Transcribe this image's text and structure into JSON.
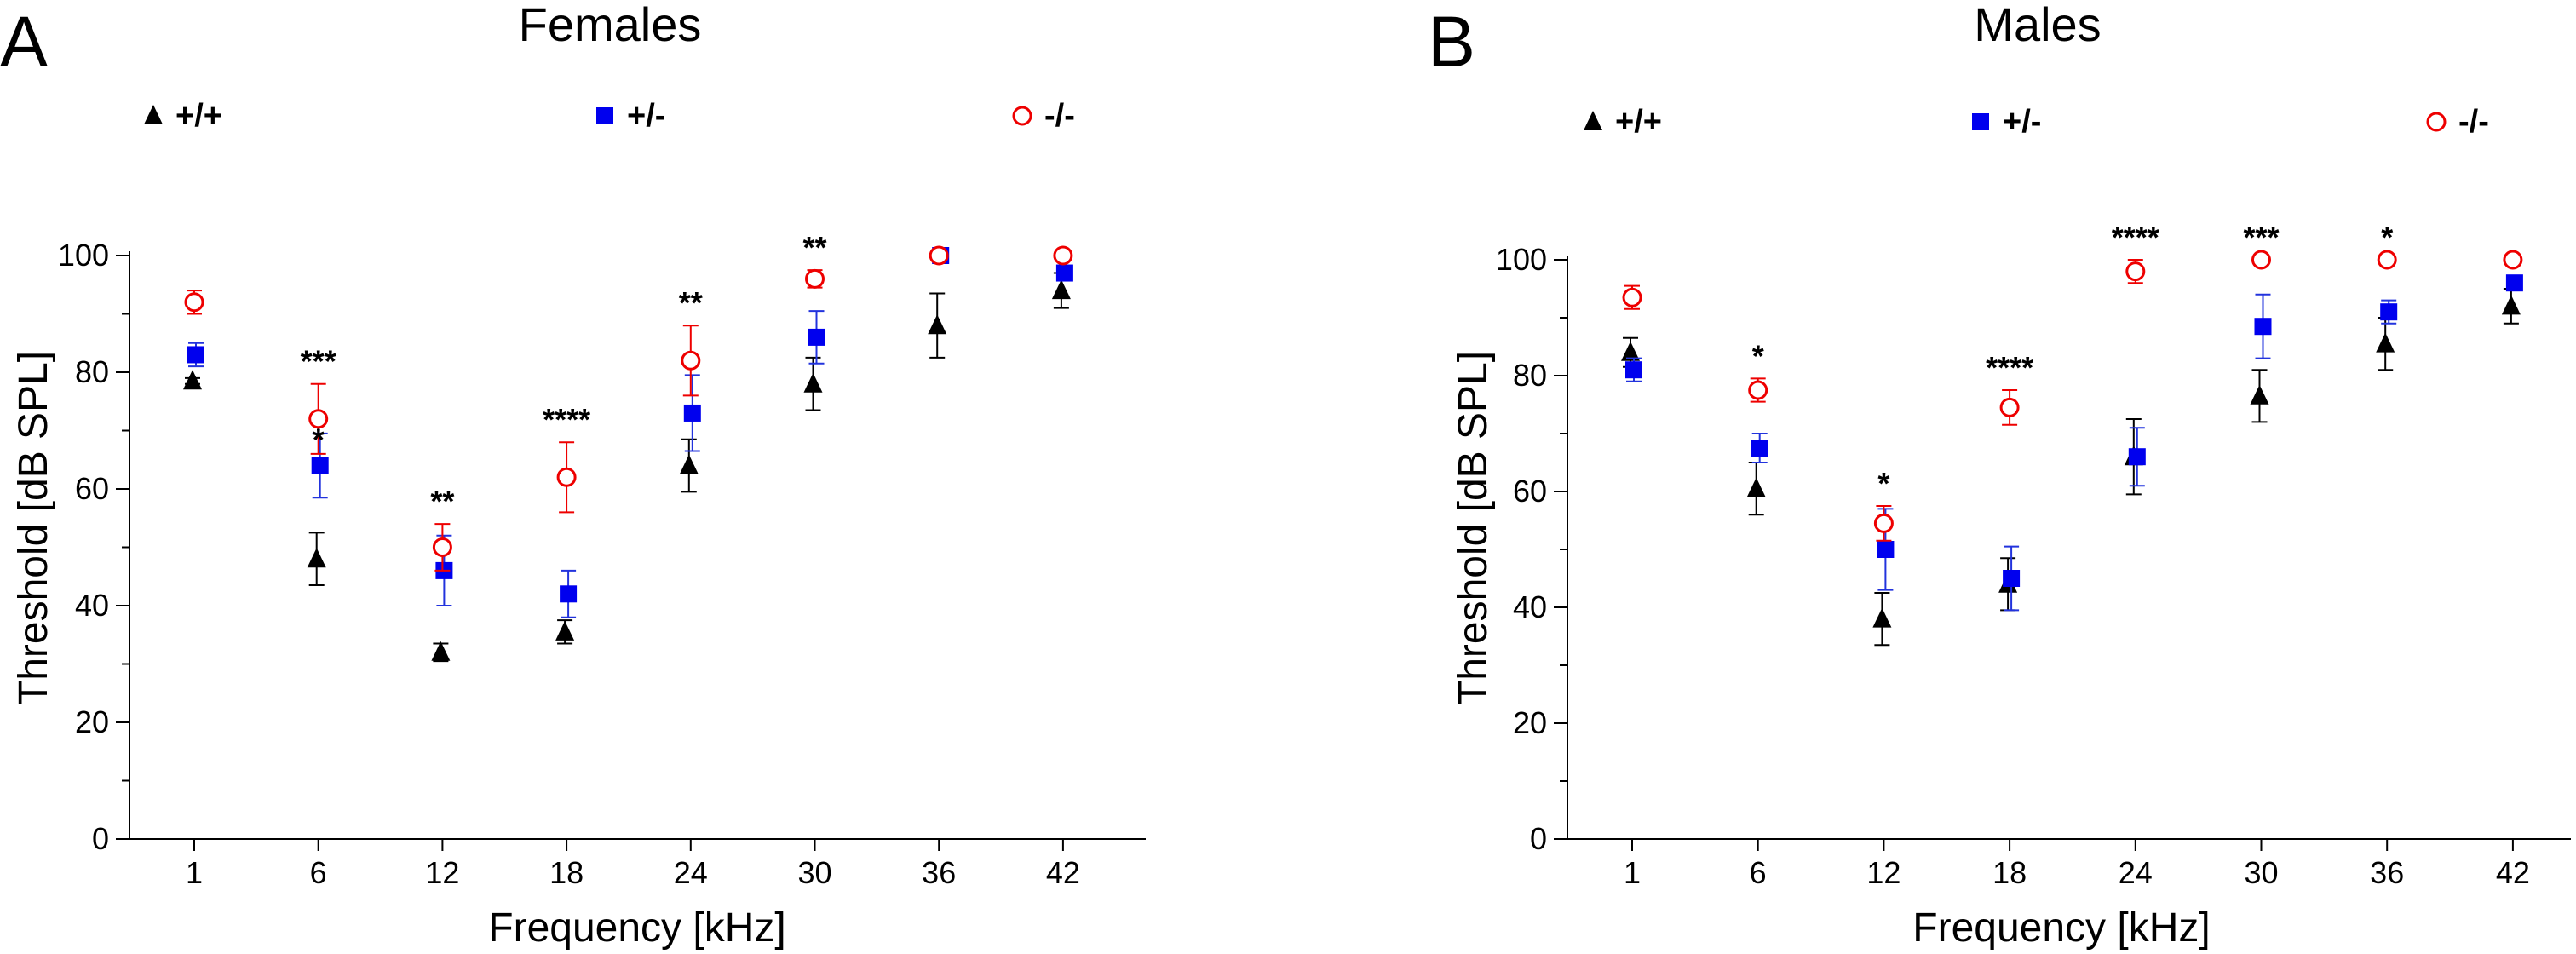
{
  "chart_data": [
    {
      "type": "scatter",
      "panel": "A",
      "title": "Females",
      "xlabel": "Frequency [kHz]",
      "ylabel": "Threshold [dB SPL]",
      "ylim": [
        0,
        100
      ],
      "yticks": [
        0,
        20,
        40,
        60,
        80,
        100
      ],
      "categories": [
        "1",
        "6",
        "12",
        "18",
        "24",
        "30",
        "36",
        "42"
      ],
      "series": [
        {
          "name": "+/+",
          "marker": "triangle",
          "color": "#000000",
          "values": [
            78.5,
            48,
            32,
            35.5,
            64,
            78,
            88,
            94
          ],
          "errors": [
            0.5,
            4.5,
            1.5,
            2,
            4.5,
            4.5,
            5.5,
            3
          ]
        },
        {
          "name": "+/-",
          "marker": "square",
          "color": "#0000ee",
          "values": [
            83,
            64,
            46,
            42,
            73,
            86,
            100,
            97
          ],
          "errors": [
            2,
            5.5,
            6,
            4,
            6.5,
            4.5,
            0,
            1
          ]
        },
        {
          "name": "-/-",
          "marker": "circle-open",
          "color": "#ee0000",
          "values": [
            92,
            72,
            50,
            62,
            82,
            96,
            100,
            100
          ],
          "errors": [
            2,
            6,
            4,
            6,
            6,
            1.5,
            0,
            0
          ]
        }
      ],
      "significance": [
        {
          "category": "6",
          "labels": [
            "***",
            "*"
          ]
        },
        {
          "category": "12",
          "labels": [
            "**"
          ]
        },
        {
          "category": "18",
          "labels": [
            "****"
          ]
        },
        {
          "category": "24",
          "labels": [
            "**"
          ]
        },
        {
          "category": "30",
          "labels": [
            "**"
          ]
        }
      ]
    },
    {
      "type": "scatter",
      "panel": "B",
      "title": "Males",
      "xlabel": "Frequency [kHz]",
      "ylabel": "Threshold [dB SPL]",
      "ylim": [
        0,
        100
      ],
      "yticks": [
        0,
        20,
        40,
        60,
        80,
        100
      ],
      "categories": [
        "1",
        "6",
        "12",
        "18",
        "24",
        "30",
        "36",
        "42"
      ],
      "series": [
        {
          "name": "+/+",
          "marker": "triangle",
          "color": "#000000",
          "values": [
            84,
            60.5,
            38,
            44,
            66,
            76.5,
            85.5,
            92
          ],
          "errors": [
            2.5,
            4.5,
            4.5,
            4.5,
            6.5,
            4.5,
            4.5,
            3
          ]
        },
        {
          "name": "+/-",
          "marker": "square",
          "color": "#0000ee",
          "values": [
            81,
            67.5,
            50,
            45,
            66,
            88.5,
            91,
            96
          ],
          "errors": [
            2,
            2.5,
            7,
            5.5,
            5,
            5.5,
            2,
            1
          ]
        },
        {
          "name": "-/-",
          "marker": "circle-open",
          "color": "#ee0000",
          "values": [
            93.5,
            77.5,
            54.5,
            74.5,
            98,
            100,
            100,
            100
          ],
          "errors": [
            2,
            2,
            3,
            3,
            2,
            0,
            0,
            0
          ]
        }
      ],
      "significance": [
        {
          "category": "6",
          "labels": [
            "*"
          ]
        },
        {
          "category": "12",
          "labels": [
            "*"
          ]
        },
        {
          "category": "18",
          "labels": [
            "****"
          ]
        },
        {
          "category": "24",
          "labels": [
            "****"
          ]
        },
        {
          "category": "30",
          "labels": [
            "***"
          ]
        },
        {
          "category": "36",
          "labels": [
            "*"
          ]
        }
      ]
    }
  ]
}
